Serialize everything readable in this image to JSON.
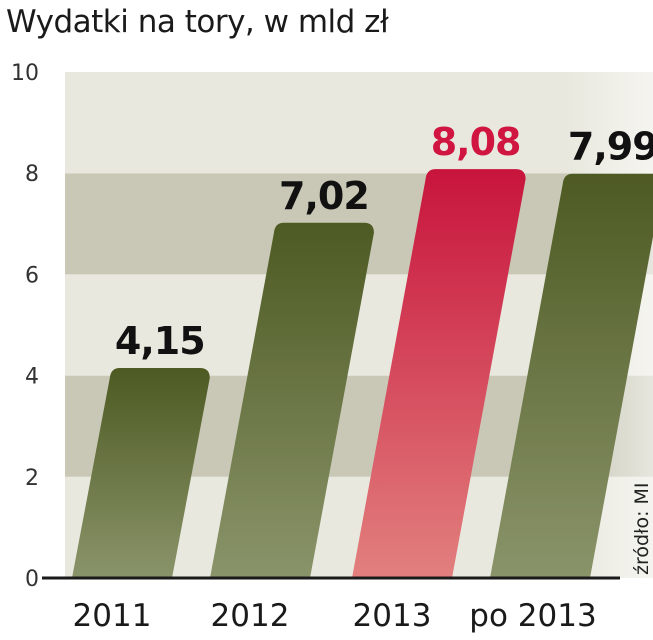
{
  "chart_data": {
    "type": "bar",
    "title": "Wydatki na tory, w mld zł",
    "categories": [
      "2011",
      "2012",
      "2013",
      "po 2013"
    ],
    "values": [
      4.15,
      7.02,
      8.08,
      7.99
    ],
    "value_labels": [
      "4,15",
      "7,02",
      "8,08",
      "7,99"
    ],
    "highlight_index": 2,
    "ylim": [
      0,
      10
    ],
    "yticks": [
      "0",
      "2",
      "4",
      "6",
      "8",
      "10"
    ],
    "grid": "alternating horizontal bands",
    "source": "źródło: MI",
    "colors": {
      "bar_top": "#4d5a22",
      "bar_bottom": "#8a946a",
      "highlight_top": "#c8143c",
      "highlight_bottom": "#e2807e",
      "highlight_label": "#d01640",
      "label": "#111111",
      "band_dark": "#c9c8b6",
      "band_light": "#e9e8de"
    }
  }
}
